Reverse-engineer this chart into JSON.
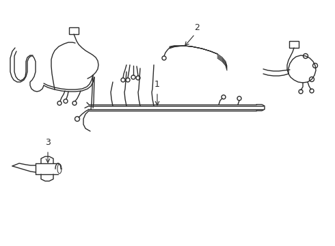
{
  "bg_color": "#ffffff",
  "line_color": "#2a2a2a",
  "line_width": 1.0,
  "label_1": "1",
  "label_2": "2",
  "label_3": "3",
  "label_fontsize": 9,
  "figsize": [
    4.9,
    3.6
  ],
  "dpi": 100
}
